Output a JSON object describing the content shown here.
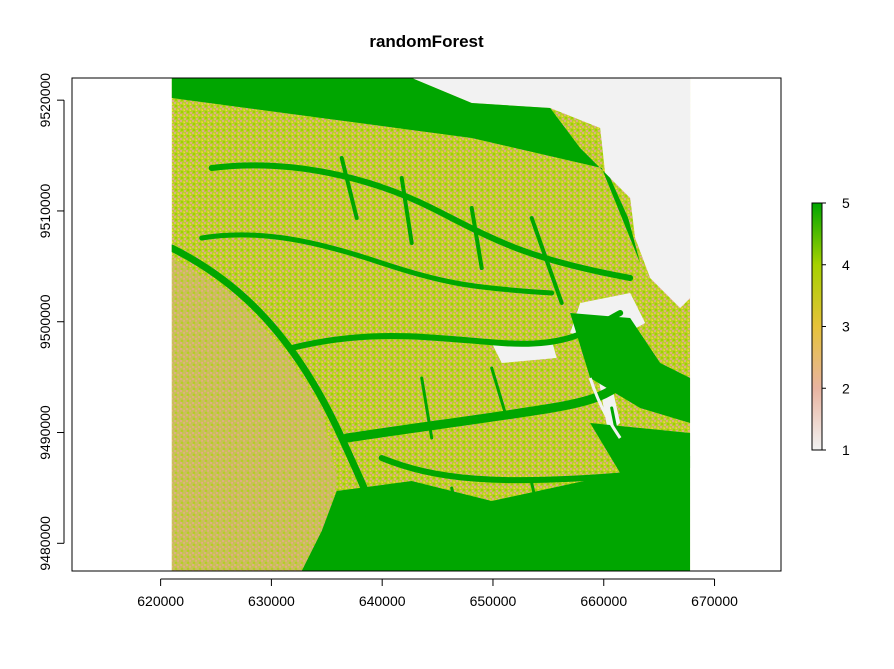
{
  "chart_data": {
    "type": "heatmap",
    "title": "randomForest",
    "xlabel": "",
    "ylabel": "",
    "xlim": [
      612000,
      676000
    ],
    "ylim": [
      9477500,
      9522000
    ],
    "raster_extent": {
      "xmin": 621000,
      "xmax": 667800,
      "ymin": 9477500,
      "ymax": 9522000
    },
    "x_ticks": [
      620000,
      630000,
      640000,
      650000,
      660000,
      670000
    ],
    "x_tick_labels": [
      "620000",
      "630000",
      "640000",
      "650000",
      "660000",
      "670000"
    ],
    "y_ticks": [
      9480000,
      9490000,
      9500000,
      9510000,
      9520000
    ],
    "y_tick_labels": [
      "9480000",
      "9490000",
      "9500000",
      "9510000",
      "9520000"
    ],
    "legend": {
      "position": "right",
      "min": 1,
      "max": 5,
      "ticks": [
        1,
        2,
        3,
        4,
        5
      ],
      "tick_labels": [
        "1",
        "2",
        "3",
        "4",
        "5"
      ],
      "colors": [
        "#f2f2f2",
        "#e8b4a0",
        "#e6c23a",
        "#a6d100",
        "#00a600"
      ]
    },
    "class_colors": {
      "1": "#f2f2f2",
      "2": "#dfae84",
      "3": "#d9d426",
      "4": "#9fd000",
      "5": "#00a600"
    },
    "grid": false
  }
}
